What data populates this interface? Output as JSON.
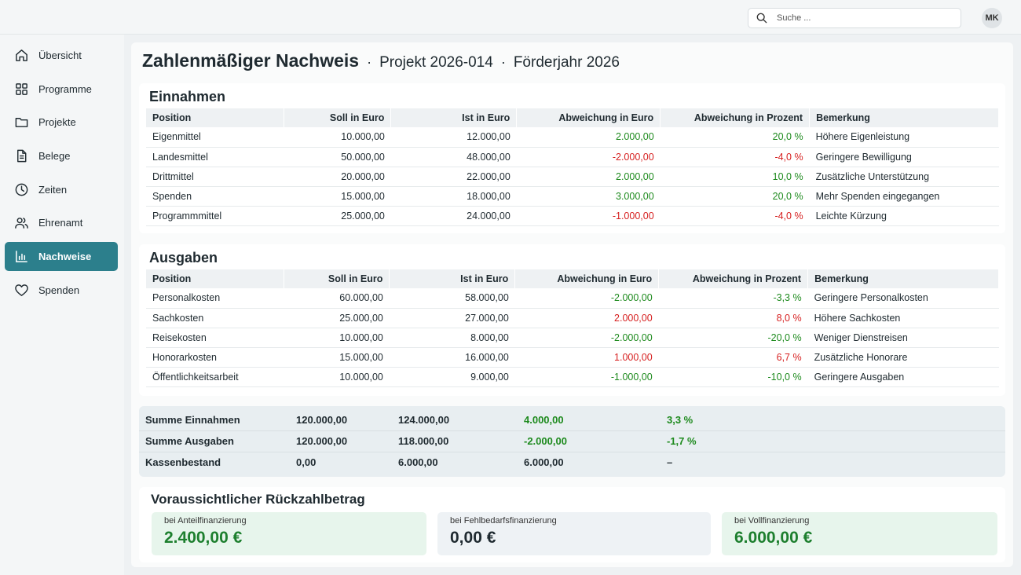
{
  "header": {
    "search_placeholder": "Suche ...",
    "avatar_initials": "MK"
  },
  "sidebar": {
    "items": [
      {
        "label": "Übersicht",
        "icon": "home-icon"
      },
      {
        "label": "Programme",
        "icon": "grid-icon"
      },
      {
        "label": "Projekte",
        "icon": "folder-icon"
      },
      {
        "label": "Belege",
        "icon": "document-icon"
      },
      {
        "label": "Zeiten",
        "icon": "clock-icon"
      },
      {
        "label": "Ehrenamt",
        "icon": "users-icon"
      },
      {
        "label": "Nachweise",
        "icon": "bar-chart-icon",
        "active": true
      },
      {
        "label": "Spenden",
        "icon": "heart-icon"
      }
    ]
  },
  "page": {
    "title": "Zahlenmäßiger Nachweis",
    "separator": "·",
    "project": "Projekt 2026-014",
    "year": "Förderjahr 2026"
  },
  "columns": [
    "Position",
    "Soll in Euro",
    "Ist in Euro",
    "Abweichung in Euro",
    "Abweichung in Prozent",
    "Bemerkung"
  ],
  "einnahmen": {
    "title": "Einnahmen",
    "rows": [
      {
        "position": "Eigenmittel",
        "soll": "10.000,00",
        "ist": "12.000,00",
        "abw_euro": "2.000,00",
        "abw_pct": "20,0 %",
        "bemerkung": "Höhere Eigenleistung",
        "tone": "pos"
      },
      {
        "position": "Landesmittel",
        "soll": "50.000,00",
        "ist": "48.000,00",
        "abw_euro": "-2.000,00",
        "abw_pct": "-4,0 %",
        "bemerkung": "Geringere Bewilligung",
        "tone": "neg"
      },
      {
        "position": "Drittmittel",
        "soll": "20.000,00",
        "ist": "22.000,00",
        "abw_euro": "2.000,00",
        "abw_pct": "10,0 %",
        "bemerkung": "Zusätzliche Unterstützung",
        "tone": "pos"
      },
      {
        "position": "Spenden",
        "soll": "15.000,00",
        "ist": "18.000,00",
        "abw_euro": "3.000,00",
        "abw_pct": "20,0 %",
        "bemerkung": "Mehr Spenden eingegangen",
        "tone": "pos"
      },
      {
        "position": "Programmmittel",
        "soll": "25.000,00",
        "ist": "24.000,00",
        "abw_euro": "-1.000,00",
        "abw_pct": "-4,0 %",
        "bemerkung": "Leichte Kürzung",
        "tone": "neg"
      }
    ]
  },
  "ausgaben": {
    "title": "Ausgaben",
    "rows": [
      {
        "position": "Personalkosten",
        "soll": "60.000,00",
        "ist": "58.000,00",
        "abw_euro": "-2.000,00",
        "abw_pct": "-3,3 %",
        "bemerkung": "Geringere Personalkosten",
        "tone": "pos"
      },
      {
        "position": "Sachkosten",
        "soll": "25.000,00",
        "ist": "27.000,00",
        "abw_euro": "2.000,00",
        "abw_pct": "8,0 %",
        "bemerkung": "Höhere Sachkosten",
        "tone": "neg"
      },
      {
        "position": "Reisekosten",
        "soll": "10.000,00",
        "ist": "8.000,00",
        "abw_euro": "-2.000,00",
        "abw_pct": "-20,0 %",
        "bemerkung": "Weniger Dienstreisen",
        "tone": "pos"
      },
      {
        "position": "Honorarkosten",
        "soll": "15.000,00",
        "ist": "16.000,00",
        "abw_euro": "1.000,00",
        "abw_pct": "6,7 %",
        "bemerkung": "Zusätzliche Honorare",
        "tone": "neg"
      },
      {
        "position": "Öffentlichkeitsarbeit",
        "soll": "10.000,00",
        "ist": "9.000,00",
        "abw_euro": "-1.000,00",
        "abw_pct": "-10,0 %",
        "bemerkung": "Geringere Ausgaben",
        "tone": "pos"
      }
    ]
  },
  "summary": {
    "rows": [
      {
        "label": "Summe Einnahmen",
        "soll": "120.000,00",
        "ist": "124.000,00",
        "abw_euro": "4.000,00",
        "abw_pct": "3,3 %",
        "tone": "pos"
      },
      {
        "label": "Summe Ausgaben",
        "soll": "120.000,00",
        "ist": "118.000,00",
        "abw_euro": "-2.000,00",
        "abw_pct": "-1,7 %",
        "tone": "pos"
      },
      {
        "label": "Kassenbestand",
        "soll": "0,00",
        "ist": "6.000,00",
        "abw_euro": "6.000,00",
        "abw_pct": "–",
        "tone": "pos"
      }
    ]
  },
  "rueckzahlung": {
    "title": "Voraussichtlicher Rückzahlbetrag",
    "cards": [
      {
        "label": "bei Anteilfinanzierung",
        "value": "2.400,00 €",
        "style": "green"
      },
      {
        "label": "bei Fehlbedarfsfinanzierung",
        "value": "0,00 €",
        "style": "grey"
      },
      {
        "label": "bei Vollfinanzierung",
        "value": "6.000,00 €",
        "style": "green"
      }
    ]
  },
  "colors": {
    "accent": "#2c7f8c",
    "positive": "#1d8a1d",
    "negative": "#d61f1f"
  }
}
